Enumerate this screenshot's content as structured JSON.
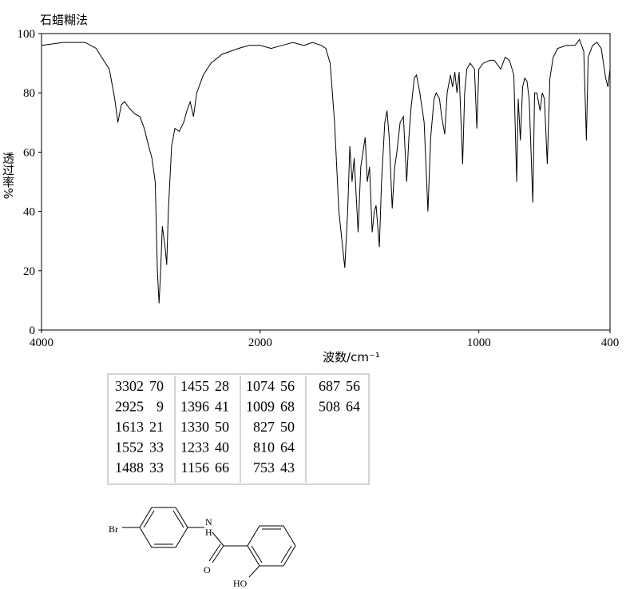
{
  "chart_data": {
    "type": "line",
    "title": "石蜡糊法",
    "y_label": "透过率%",
    "x_label": "波数/cm⁻¹",
    "xlim": [
      4000,
      400
    ],
    "ylim": [
      0,
      100
    ],
    "xticks": [
      4000,
      2000,
      1000,
      400
    ],
    "yticks": [
      0,
      20,
      40,
      60,
      80,
      100
    ],
    "x": [
      4000,
      3800,
      3600,
      3500,
      3450,
      3380,
      3330,
      3302,
      3270,
      3240,
      3200,
      3150,
      3100,
      3060,
      3020,
      2990,
      2960,
      2940,
      2925,
      2910,
      2895,
      2870,
      2855,
      2840,
      2810,
      2780,
      2740,
      2700,
      2670,
      2640,
      2610,
      2580,
      2520,
      2450,
      2350,
      2200,
      2100,
      2000,
      1950,
      1900,
      1850,
      1800,
      1760,
      1720,
      1700,
      1680,
      1660,
      1640,
      1613,
      1600,
      1590,
      1580,
      1570,
      1552,
      1540,
      1520,
      1510,
      1500,
      1488,
      1478,
      1470,
      1455,
      1445,
      1430,
      1420,
      1410,
      1396,
      1385,
      1375,
      1360,
      1345,
      1330,
      1320,
      1310,
      1295,
      1285,
      1270,
      1250,
      1233,
      1220,
      1205,
      1195,
      1180,
      1170,
      1156,
      1145,
      1130,
      1120,
      1110,
      1100,
      1090,
      1074,
      1065,
      1055,
      1040,
      1020,
      1009,
      1000,
      980,
      950,
      930,
      900,
      880,
      860,
      840,
      827,
      820,
      810,
      800,
      790,
      780,
      770,
      753,
      745,
      735,
      720,
      710,
      700,
      687,
      675,
      660,
      640,
      600,
      560,
      540,
      520,
      508,
      500,
      480,
      460,
      440,
      420,
      410,
      400
    ],
    "series": [
      {
        "color": "#000000",
        "values": [
          96,
          97,
          97,
          95,
          92,
          88,
          78,
          70,
          76,
          77,
          75,
          73,
          72,
          68,
          62,
          58,
          50,
          20,
          9,
          20,
          35,
          28,
          22,
          40,
          62,
          68,
          67,
          70,
          74,
          77,
          72,
          80,
          86,
          90,
          93,
          95,
          96,
          96,
          95,
          96,
          97,
          96,
          97,
          96,
          95,
          90,
          70,
          40,
          21,
          40,
          62,
          50,
          58,
          33,
          55,
          65,
          50,
          55,
          33,
          40,
          42,
          28,
          50,
          70,
          74,
          65,
          41,
          55,
          60,
          70,
          72,
          50,
          65,
          75,
          85,
          86,
          80,
          70,
          40,
          65,
          78,
          80,
          78,
          72,
          66,
          80,
          86,
          82,
          87,
          80,
          87,
          56,
          80,
          88,
          90,
          88,
          68,
          88,
          90,
          91,
          91,
          88,
          92,
          91,
          86,
          50,
          78,
          64,
          82,
          85,
          84,
          78,
          43,
          80,
          80,
          74,
          80,
          78,
          56,
          85,
          92,
          95,
          96,
          96,
          98,
          94,
          64,
          92,
          96,
          97,
          95,
          85,
          82,
          88
        ]
      }
    ]
  },
  "peak_table": {
    "columns": [
      [
        [
          3302,
          70
        ],
        [
          2925,
          9
        ],
        [
          1613,
          21
        ],
        [
          1552,
          33
        ],
        [
          1488,
          33
        ]
      ],
      [
        [
          1455,
          28
        ],
        [
          1396,
          41
        ],
        [
          1330,
          50
        ],
        [
          1233,
          40
        ],
        [
          1156,
          66
        ]
      ],
      [
        [
          1074,
          56
        ],
        [
          1009,
          68
        ],
        [
          827,
          50
        ],
        [
          810,
          64
        ],
        [
          753,
          43
        ]
      ],
      [
        [
          687,
          56
        ],
        [
          508,
          64
        ]
      ]
    ]
  },
  "structure": {
    "labels": [
      "Br",
      "N",
      "H",
      "O",
      "HO"
    ]
  }
}
